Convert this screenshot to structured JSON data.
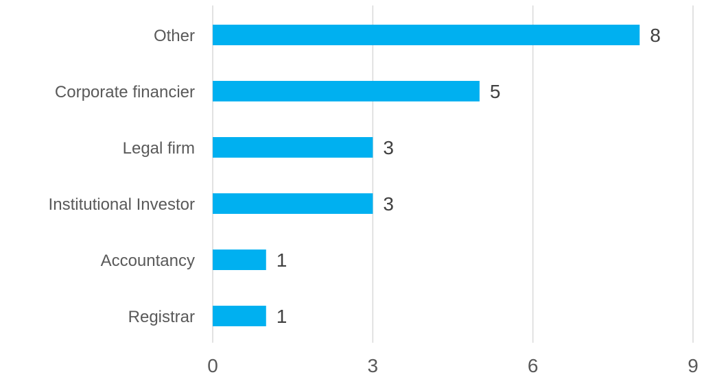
{
  "chart_data": {
    "type": "bar",
    "orientation": "horizontal",
    "categories": [
      "Other",
      "Corporate financier",
      "Legal firm",
      "Institutional Investor",
      "Accountancy",
      "Registrar"
    ],
    "values": [
      8,
      5,
      3,
      3,
      1,
      1
    ],
    "xlim": [
      0,
      9
    ],
    "xticks": [
      0,
      3,
      6,
      9
    ],
    "title": "",
    "xlabel": "",
    "ylabel": "",
    "grid": "vertical",
    "data_labels": true,
    "colors": {
      "bar": "#00B0F0",
      "grid": "#D9D9D9",
      "text": "#595959"
    }
  }
}
